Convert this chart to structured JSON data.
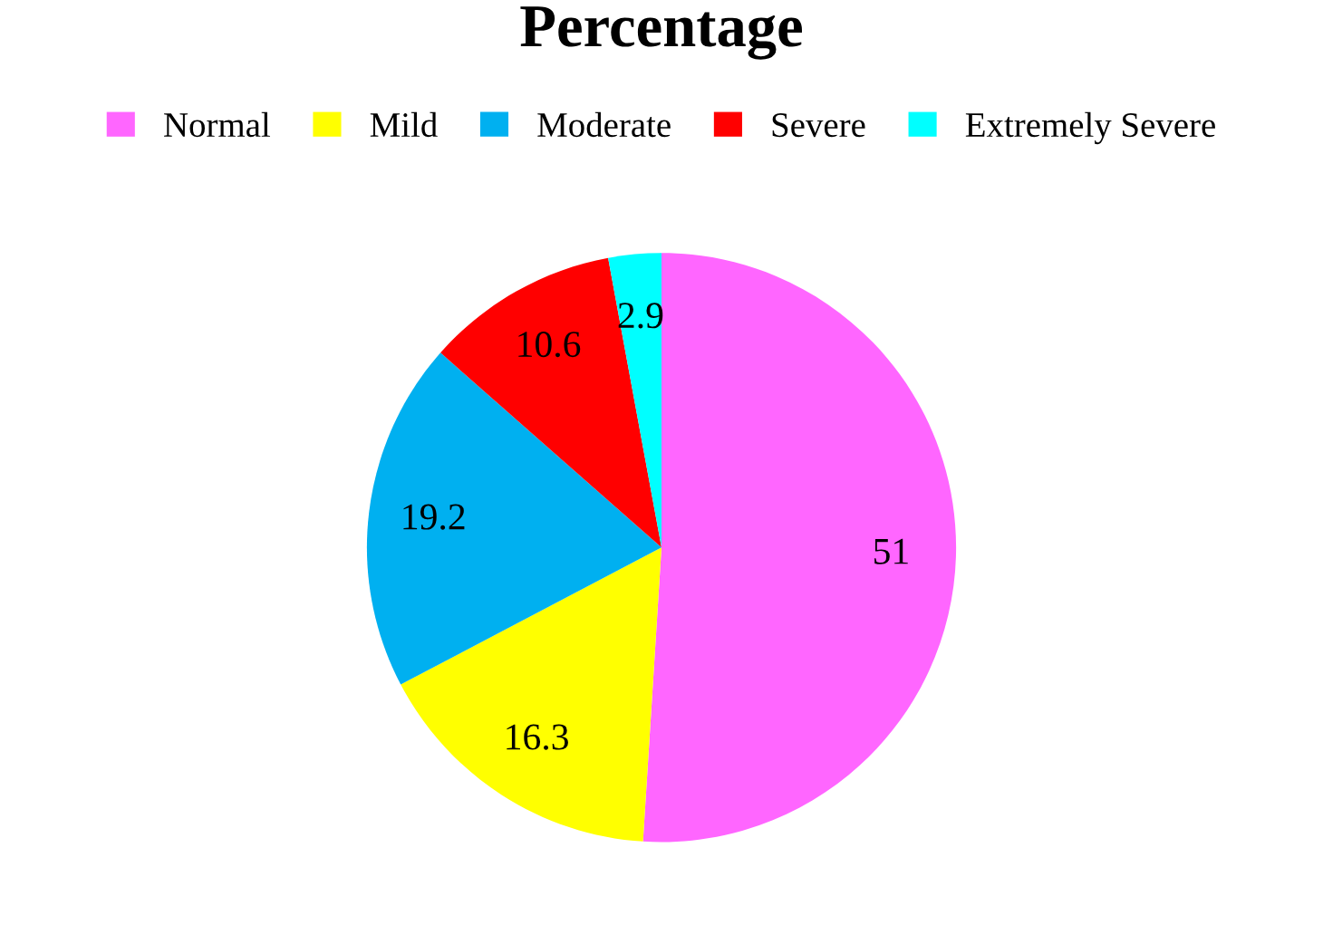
{
  "chart_data": {
    "type": "pie",
    "title": "Percentage",
    "categories": [
      "Normal",
      "Mild",
      "Moderate",
      "Severe",
      "Extremely Severe"
    ],
    "values": [
      51,
      16.3,
      19.2,
      10.6,
      2.9
    ],
    "colors": [
      "#ff66ff",
      "#ffff00",
      "#00b0f0",
      "#ff0000",
      "#00ffff"
    ],
    "data_labels": true,
    "legend": "top"
  }
}
